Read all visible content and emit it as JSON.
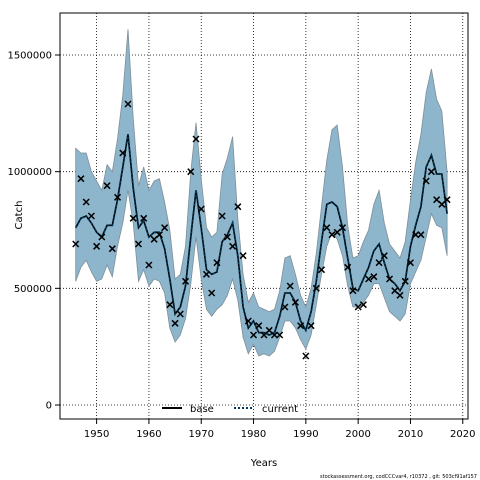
{
  "chart_data": {
    "type": "line",
    "xlabel": "Years",
    "ylabel": "Catch",
    "xlim": [
      1943,
      2021
    ],
    "ylim": [
      -60000,
      1680000
    ],
    "x_ticks": [
      1950,
      1960,
      1970,
      1980,
      1990,
      2000,
      2010,
      2020
    ],
    "y_ticks": [
      0,
      500000,
      1000000,
      1500000
    ],
    "y_tick_labels": [
      "0",
      "500000",
      "1000000",
      "1500000"
    ],
    "grid": true,
    "legend_position": "bottom-center",
    "colors": {
      "band_fill": "#8db5cb",
      "band_stroke": "#7f8f99",
      "current_line": "#003a5c",
      "base_line": "#000000",
      "observed_marker": "#000000"
    },
    "years": [
      1946,
      1947,
      1948,
      1949,
      1950,
      1951,
      1952,
      1953,
      1954,
      1955,
      1956,
      1957,
      1958,
      1959,
      1960,
      1961,
      1962,
      1963,
      1964,
      1965,
      1966,
      1967,
      1968,
      1969,
      1970,
      1971,
      1972,
      1973,
      1974,
      1975,
      1976,
      1977,
      1978,
      1979,
      1980,
      1981,
      1982,
      1983,
      1984,
      1985,
      1986,
      1987,
      1988,
      1989,
      1990,
      1991,
      1992,
      1993,
      1994,
      1995,
      1996,
      1997,
      1998,
      1999,
      2000,
      2001,
      2002,
      2003,
      2004,
      2005,
      2006,
      2007,
      2008,
      2009,
      2010,
      2011,
      2012,
      2013,
      2014,
      2015,
      2016,
      2017
    ],
    "band_upper": [
      1100000,
      1080000,
      1080000,
      1000000,
      960000,
      920000,
      1030000,
      1000000,
      1140000,
      1330000,
      1610000,
      1230000,
      940000,
      1020000,
      920000,
      960000,
      970000,
      870000,
      750000,
      540000,
      560000,
      680000,
      1000000,
      1210000,
      970000,
      760000,
      720000,
      740000,
      990000,
      1060000,
      1150000,
      800000,
      560000,
      440000,
      480000,
      420000,
      410000,
      400000,
      410000,
      490000,
      630000,
      640000,
      560000,
      470000,
      420000,
      500000,
      650000,
      850000,
      1050000,
      1180000,
      1200000,
      1020000,
      770000,
      630000,
      640000,
      700000,
      750000,
      860000,
      920000,
      780000,
      690000,
      660000,
      630000,
      700000,
      880000,
      1040000,
      1160000,
      1340000,
      1440000,
      1310000,
      1260000,
      1000000
    ],
    "band_lower": [
      530000,
      590000,
      620000,
      570000,
      530000,
      540000,
      600000,
      550000,
      680000,
      780000,
      920000,
      780000,
      530000,
      580000,
      510000,
      540000,
      530000,
      480000,
      330000,
      270000,
      300000,
      370000,
      520000,
      720000,
      540000,
      410000,
      380000,
      410000,
      430000,
      470000,
      540000,
      450000,
      290000,
      220000,
      260000,
      210000,
      220000,
      210000,
      230000,
      290000,
      360000,
      360000,
      330000,
      280000,
      240000,
      300000,
      430000,
      560000,
      680000,
      740000,
      710000,
      640000,
      510000,
      420000,
      420000,
      440000,
      470000,
      520000,
      520000,
      460000,
      400000,
      380000,
      360000,
      390000,
      520000,
      570000,
      620000,
      720000,
      820000,
      770000,
      760000,
      640000
    ],
    "series": [
      {
        "name": "base",
        "values": [
          760000,
          800000,
          810000,
          780000,
          740000,
          720000,
          770000,
          770000,
          880000,
          1020000,
          1160000,
          930000,
          760000,
          790000,
          720000,
          740000,
          740000,
          670000,
          540000,
          390000,
          420000,
          510000,
          720000,
          920000,
          760000,
          580000,
          560000,
          570000,
          700000,
          730000,
          780000,
          640000,
          420000,
          330000,
          360000,
          310000,
          310000,
          300000,
          310000,
          380000,
          480000,
          480000,
          440000,
          360000,
          320000,
          400000,
          530000,
          700000,
          860000,
          870000,
          850000,
          760000,
          630000,
          500000,
          490000,
          540000,
          590000,
          660000,
          690000,
          610000,
          540000,
          520000,
          490000,
          530000,
          680000,
          770000,
          850000,
          1020000,
          1070000,
          990000,
          990000,
          820000
        ]
      },
      {
        "name": "current",
        "values": [
          760000,
          800000,
          810000,
          780000,
          740000,
          720000,
          770000,
          770000,
          880000,
          1020000,
          1160000,
          930000,
          760000,
          790000,
          720000,
          740000,
          740000,
          670000,
          540000,
          390000,
          420000,
          510000,
          720000,
          920000,
          760000,
          580000,
          560000,
          570000,
          700000,
          730000,
          780000,
          640000,
          420000,
          330000,
          360000,
          310000,
          310000,
          300000,
          310000,
          380000,
          480000,
          480000,
          440000,
          360000,
          320000,
          400000,
          530000,
          700000,
          860000,
          870000,
          850000,
          760000,
          630000,
          500000,
          490000,
          540000,
          590000,
          660000,
          690000,
          610000,
          540000,
          520000,
          490000,
          530000,
          680000,
          770000,
          850000,
          1020000,
          1070000,
          990000,
          990000,
          820000
        ]
      }
    ],
    "observed": [
      [
        1946,
        690000
      ],
      [
        1947,
        970000
      ],
      [
        1948,
        870000
      ],
      [
        1949,
        810000
      ],
      [
        1950,
        680000
      ],
      [
        1951,
        720000
      ],
      [
        1952,
        940000
      ],
      [
        1953,
        670000
      ],
      [
        1954,
        890000
      ],
      [
        1955,
        1080000
      ],
      [
        1956,
        1290000
      ],
      [
        1957,
        800000
      ],
      [
        1958,
        690000
      ],
      [
        1959,
        800000
      ],
      [
        1960,
        600000
      ],
      [
        1961,
        710000
      ],
      [
        1962,
        730000
      ],
      [
        1963,
        760000
      ],
      [
        1964,
        430000
      ],
      [
        1965,
        350000
      ],
      [
        1966,
        390000
      ],
      [
        1967,
        530000
      ],
      [
        1968,
        1000000
      ],
      [
        1969,
        1140000
      ],
      [
        1970,
        840000
      ],
      [
        1971,
        560000
      ],
      [
        1972,
        480000
      ],
      [
        1973,
        610000
      ],
      [
        1974,
        810000
      ],
      [
        1975,
        720000
      ],
      [
        1976,
        680000
      ],
      [
        1977,
        850000
      ],
      [
        1978,
        640000
      ],
      [
        1979,
        360000
      ],
      [
        1980,
        300000
      ],
      [
        1981,
        340000
      ],
      [
        1982,
        300000
      ],
      [
        1983,
        320000
      ],
      [
        1984,
        300000
      ],
      [
        1985,
        300000
      ],
      [
        1986,
        420000
      ],
      [
        1987,
        510000
      ],
      [
        1988,
        440000
      ],
      [
        1989,
        340000
      ],
      [
        1990,
        210000
      ],
      [
        1991,
        340000
      ],
      [
        1992,
        500000
      ],
      [
        1993,
        580000
      ],
      [
        1994,
        760000
      ],
      [
        1995,
        730000
      ],
      [
        1996,
        740000
      ],
      [
        1997,
        760000
      ],
      [
        1998,
        590000
      ],
      [
        1999,
        490000
      ],
      [
        2000,
        420000
      ],
      [
        2001,
        430000
      ],
      [
        2002,
        540000
      ],
      [
        2003,
        550000
      ],
      [
        2004,
        610000
      ],
      [
        2005,
        640000
      ],
      [
        2006,
        540000
      ],
      [
        2007,
        490000
      ],
      [
        2008,
        470000
      ],
      [
        2009,
        530000
      ],
      [
        2010,
        610000
      ],
      [
        2011,
        730000
      ],
      [
        2012,
        730000
      ],
      [
        2013,
        960000
      ],
      [
        2014,
        1000000
      ],
      [
        2015,
        880000
      ],
      [
        2016,
        860000
      ],
      [
        2017,
        880000
      ]
    ]
  },
  "footer": "stockassessment.org, codCCCvar4, r10372 , git: 503cf91af157"
}
